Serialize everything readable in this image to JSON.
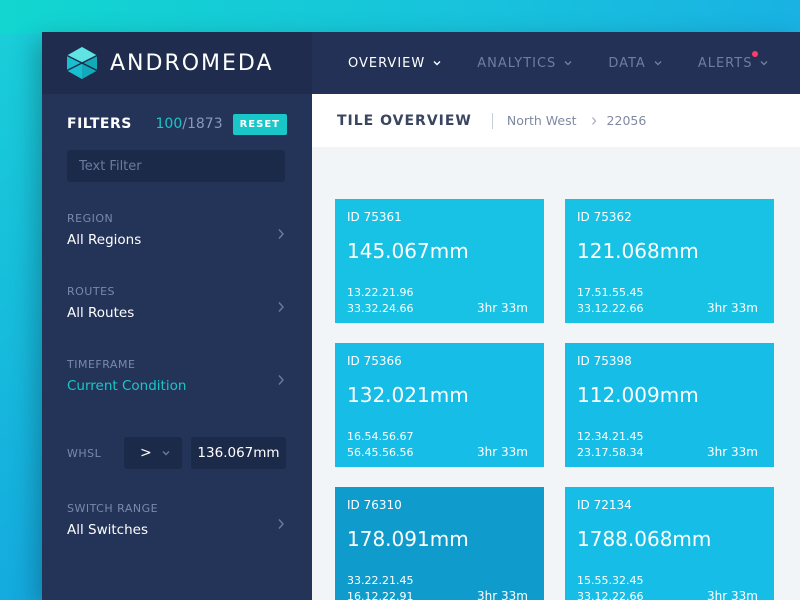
{
  "app": {
    "name": "ANDROMEDA"
  },
  "nav": {
    "items": [
      {
        "label": "OVERVIEW",
        "active": true
      },
      {
        "label": "ANALYTICS",
        "active": false
      },
      {
        "label": "DATA",
        "active": false
      },
      {
        "label": "ALERTS",
        "active": false,
        "has_alert": true
      }
    ]
  },
  "filters": {
    "title": "FILTERS",
    "count_shown": "100",
    "count_total": "/1873",
    "reset_label": "RESET",
    "text_filter_placeholder": "Text Filter",
    "rows": [
      {
        "label": "REGION",
        "value": "All Regions"
      },
      {
        "label": "ROUTES",
        "value": "All Routes"
      },
      {
        "label": "TIMEFRAME",
        "value": "Current Condition"
      },
      {
        "label": "SWITCH RANGE",
        "value": "All Switches"
      }
    ],
    "whsl": {
      "label": "WHSL",
      "operator": ">",
      "value": "136.067mm"
    }
  },
  "main": {
    "title": "TILE OVERVIEW",
    "breadcrumb": [
      "North West",
      "22056"
    ],
    "tiles": [
      {
        "id": "ID 75361",
        "value": "145.067mm",
        "line1": "13.22.21.96",
        "line2": "33.32.24.66",
        "time": "3hr 33m"
      },
      {
        "id": "ID 75362",
        "value": "121.068mm",
        "line1": "17.51.55.45",
        "line2": "33.12.22.66",
        "time": "3hr 33m"
      },
      {
        "id": "ID 75366",
        "value": "132.021mm",
        "line1": "16.54.56.67",
        "line2": "56.45.56.56",
        "time": "3hr 33m"
      },
      {
        "id": "ID 75398",
        "value": "112.009mm",
        "line1": "12.34.21.45",
        "line2": "23.17.58.34",
        "time": "3hr 33m"
      },
      {
        "id": "ID 76310",
        "value": "178.091mm",
        "line1": "33.22.21.45",
        "line2": "16.12.22.91",
        "time": "3hr 33m"
      },
      {
        "id": "ID 72134",
        "value": "1788.068mm",
        "line1": "15.55.32.45",
        "line2": "33.12.22.66",
        "time": "3hr 33m"
      }
    ]
  },
  "colors": {
    "accent": "#19c7c9",
    "tile": "#17c2e4",
    "tile_selected": "#0f9ccc",
    "sidebar": "#243358",
    "topbar": "#223155",
    "alert": "#ff3c6a"
  },
  "icons": {
    "logo": "hexagon-logo-icon",
    "nav_chevron": "chevron-down-icon",
    "row_chevron": "chevron-right-icon"
  }
}
